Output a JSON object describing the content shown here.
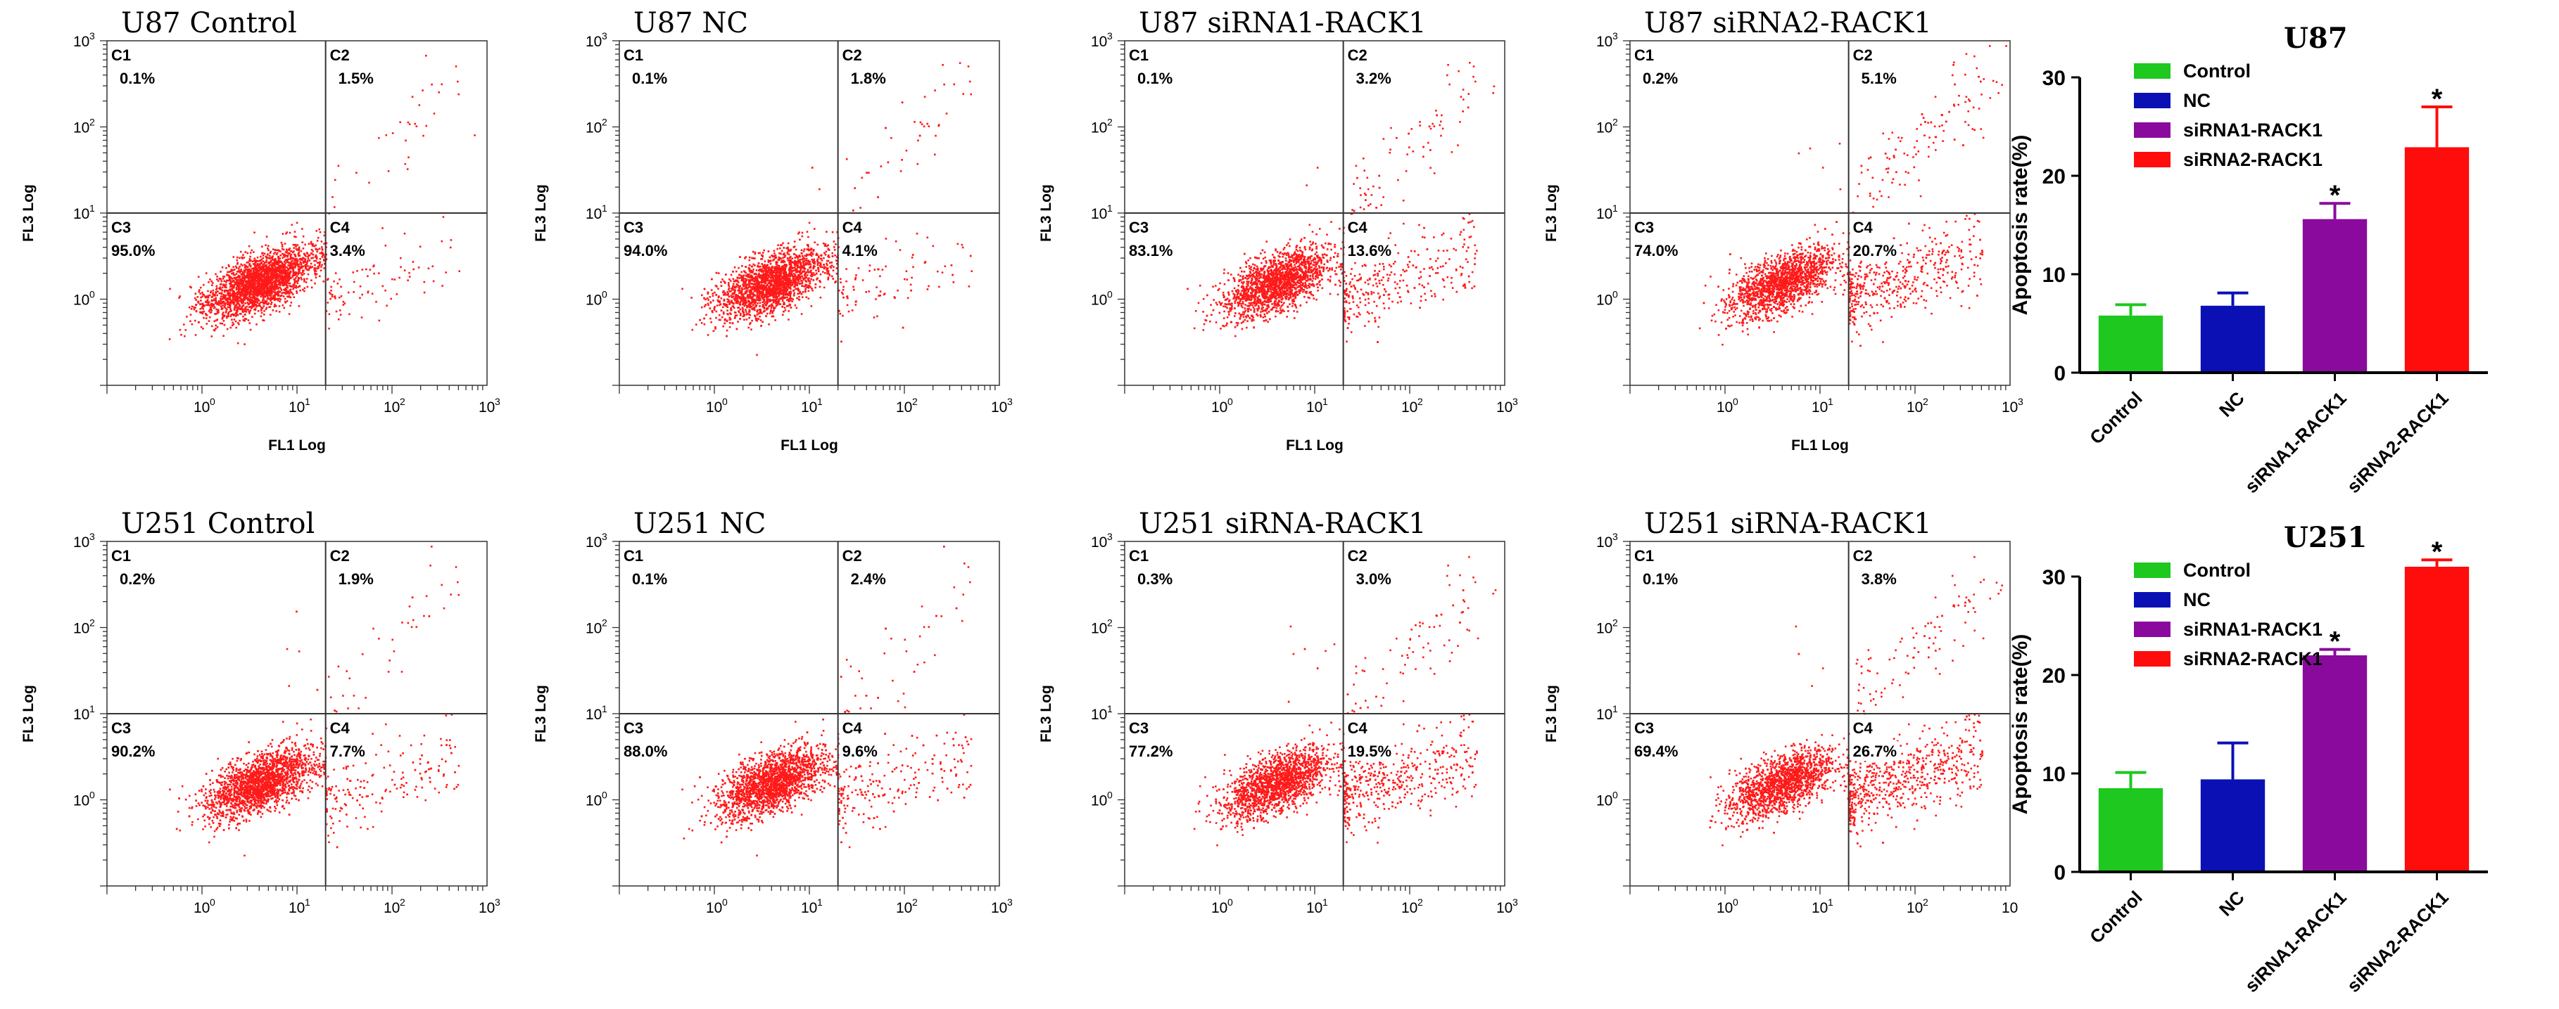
{
  "chart_data": [
    {
      "type": "scatter",
      "id": "u87-control",
      "title": "U87 Control",
      "xlabel": "FL1 Log",
      "ylabel": "FL3 Log",
      "xlim": [
        0.1,
        1000
      ],
      "ylim": [
        0.1,
        1000
      ],
      "x_ticks": [
        "10",
        "10",
        "10",
        "10"
      ],
      "x_tick_exps": [
        "0",
        "1",
        "2",
        "3"
      ],
      "y_ticks": [
        "10",
        "10",
        "10",
        "10"
      ],
      "y_tick_exps": [
        "0",
        "1",
        "2",
        "3"
      ],
      "gate": [
        20,
        10
      ],
      "quadrants": [
        {
          "name": "C1",
          "value": "0.1%"
        },
        {
          "name": "C2",
          "value": "1.5%"
        },
        {
          "name": "C3",
          "value": "95.0%"
        },
        {
          "name": "C4",
          "value": "3.4%"
        }
      ]
    },
    {
      "type": "scatter",
      "id": "u87-nc",
      "title": "U87 NC",
      "xlabel": "FL1 Log",
      "ylabel": "FL3 Log",
      "xlim": [
        0.1,
        1000
      ],
      "ylim": [
        0.1,
        1000
      ],
      "x_ticks": [
        "10",
        "10",
        "10",
        "10"
      ],
      "x_tick_exps": [
        "0",
        "1",
        "2",
        "3"
      ],
      "y_ticks": [
        "10",
        "10",
        "10",
        "10"
      ],
      "y_tick_exps": [
        "0",
        "1",
        "2",
        "3"
      ],
      "gate": [
        20,
        10
      ],
      "quadrants": [
        {
          "name": "C1",
          "value": "0.1%"
        },
        {
          "name": "C2",
          "value": "1.8%"
        },
        {
          "name": "C3",
          "value": "94.0%"
        },
        {
          "name": "C4",
          "value": "4.1%"
        }
      ]
    },
    {
      "type": "scatter",
      "id": "u87-sirna1",
      "title": "U87 siRNA1-RACK1",
      "xlabel": "FL1 Log",
      "ylabel": "FL3 Log",
      "xlim": [
        0.1,
        1000
      ],
      "ylim": [
        0.1,
        1000
      ],
      "x_ticks": [
        "10",
        "10",
        "10",
        "10"
      ],
      "x_tick_exps": [
        "0",
        "1",
        "2",
        "3"
      ],
      "y_ticks": [
        "10",
        "10",
        "10",
        "10"
      ],
      "y_tick_exps": [
        "0",
        "1",
        "2",
        "3"
      ],
      "gate": [
        20,
        10
      ],
      "quadrants": [
        {
          "name": "C1",
          "value": "0.1%"
        },
        {
          "name": "C2",
          "value": "3.2%"
        },
        {
          "name": "C3",
          "value": "83.1%"
        },
        {
          "name": "C4",
          "value": "13.6%"
        }
      ]
    },
    {
      "type": "scatter",
      "id": "u87-sirna2",
      "title": "U87 siRNA2-RACK1",
      "xlabel": "FL1 Log",
      "ylabel": "FL3 Log",
      "xlim": [
        0.1,
        1000
      ],
      "ylim": [
        0.1,
        1000
      ],
      "x_ticks": [
        "10",
        "10",
        "10",
        "10"
      ],
      "x_tick_exps": [
        "0",
        "1",
        "2",
        "3"
      ],
      "y_ticks": [
        "10",
        "10",
        "10",
        "10"
      ],
      "y_tick_exps": [
        "0",
        "1",
        "2",
        "3"
      ],
      "gate": [
        20,
        10
      ],
      "quadrants": [
        {
          "name": "C1",
          "value": "0.2%"
        },
        {
          "name": "C2",
          "value": "5.1%"
        },
        {
          "name": "C3",
          "value": "74.0%"
        },
        {
          "name": "C4",
          "value": "20.7%"
        }
      ]
    },
    {
      "type": "scatter",
      "id": "u251-control",
      "title": "U251 Control",
      "xlabel": "",
      "ylabel": "FL3 Log",
      "xlim": [
        0.1,
        1000
      ],
      "ylim": [
        0.1,
        1000
      ],
      "x_ticks": [
        "10",
        "10",
        "10",
        "10"
      ],
      "x_tick_exps": [
        "0",
        "1",
        "2",
        "3"
      ],
      "y_ticks": [
        "10",
        "10",
        "10",
        "10"
      ],
      "y_tick_exps": [
        "0",
        "1",
        "2",
        "3"
      ],
      "gate": [
        20,
        10
      ],
      "quadrants": [
        {
          "name": "C1",
          "value": "0.2%"
        },
        {
          "name": "C2",
          "value": "1.9%"
        },
        {
          "name": "C3",
          "value": "90.2%"
        },
        {
          "name": "C4",
          "value": "7.7%"
        }
      ]
    },
    {
      "type": "scatter",
      "id": "u251-nc",
      "title": "U251 NC",
      "xlabel": "",
      "ylabel": "FL3 Log",
      "xlim": [
        0.1,
        1000
      ],
      "ylim": [
        0.1,
        1000
      ],
      "x_ticks": [
        "10",
        "10",
        "10",
        "10"
      ],
      "x_tick_exps": [
        "0",
        "1",
        "2",
        "3"
      ],
      "y_ticks": [
        "10",
        "10",
        "10",
        "10"
      ],
      "y_tick_exps": [
        "0",
        "1",
        "2",
        "3"
      ],
      "gate": [
        20,
        10
      ],
      "quadrants": [
        {
          "name": "C1",
          "value": "0.1%"
        },
        {
          "name": "C2",
          "value": "2.4%"
        },
        {
          "name": "C3",
          "value": "88.0%"
        },
        {
          "name": "C4",
          "value": "9.6%"
        }
      ]
    },
    {
      "type": "scatter",
      "id": "u251-sirna1",
      "title": "U251 siRNA-RACK1",
      "xlabel": "",
      "ylabel": "FL3 Log",
      "xlim": [
        0.1,
        1000
      ],
      "ylim": [
        0.1,
        1000
      ],
      "x_ticks": [
        "10",
        "10",
        "10",
        "10"
      ],
      "x_tick_exps": [
        "0",
        "1",
        "2",
        "3"
      ],
      "y_ticks": [
        "10",
        "10",
        "10",
        "10"
      ],
      "y_tick_exps": [
        "0",
        "1",
        "2",
        "3"
      ],
      "gate": [
        20,
        10
      ],
      "quadrants": [
        {
          "name": "C1",
          "value": "0.3%"
        },
        {
          "name": "C2",
          "value": "3.0%"
        },
        {
          "name": "C3",
          "value": "77.2%"
        },
        {
          "name": "C4",
          "value": "19.5%"
        }
      ]
    },
    {
      "type": "scatter",
      "id": "u251-sirna2",
      "title": "U251 siRNA-RACK1",
      "xlabel": "",
      "ylabel": "FL3 Log",
      "xlim": [
        0.1,
        1000
      ],
      "ylim": [
        0.1,
        1000
      ],
      "x_ticks": [
        "10",
        "10",
        "10",
        "10"
      ],
      "x_tick_exps": [
        "0",
        "1",
        "2",
        ""
      ],
      "y_ticks": [
        "10",
        "10",
        "10",
        "10"
      ],
      "y_tick_exps": [
        "0",
        "1",
        "2",
        "3"
      ],
      "gate": [
        20,
        10
      ],
      "quadrants": [
        {
          "name": "C1",
          "value": "0.1%"
        },
        {
          "name": "C2",
          "value": "3.8%"
        },
        {
          "name": "C3",
          "value": "69.4%"
        },
        {
          "name": "C4",
          "value": "26.7%"
        }
      ]
    },
    {
      "type": "bar",
      "id": "u87-bar",
      "title": "U87",
      "ylabel": "Apoptosis rate(%)",
      "ylim": [
        0,
        30
      ],
      "y_ticks": [
        "0",
        "10",
        "20",
        "30"
      ],
      "categories": [
        "Control",
        "NC",
        "siRNA1-RACK1",
        "siRNA2-RACK1"
      ],
      "values": [
        5.8,
        6.8,
        15.6,
        22.9
      ],
      "errors": [
        1.1,
        1.3,
        1.6,
        4.1
      ],
      "colors": [
        "#1ec81e",
        "#0b10b5",
        "#8a0a9e",
        "#ff0c0c"
      ],
      "significant": [
        "",
        "",
        "*",
        "*"
      ],
      "legend": [
        "Control",
        "NC",
        "siRNA1-RACK1",
        "siRNA2-RACK1"
      ]
    },
    {
      "type": "bar",
      "id": "u251-bar",
      "title": "U251",
      "ylabel": "Apoptosis rate(%)",
      "ylim": [
        0,
        30
      ],
      "y_ticks": [
        "0",
        "10",
        "20",
        "30"
      ],
      "categories": [
        "Control",
        "NC",
        "siRNA1-RACK1",
        "siRNA2-RACK1"
      ],
      "values": [
        8.5,
        9.4,
        22,
        31
      ],
      "errors": [
        1.6,
        3.7,
        0.6,
        0.7
      ],
      "colors": [
        "#1ec81e",
        "#0b10b5",
        "#8a0a9e",
        "#ff0c0c"
      ],
      "significant": [
        "",
        "",
        "*",
        "*"
      ],
      "legend": [
        "Control",
        "NC",
        "siRNA1-RACK1",
        "siRNA2-RACK1"
      ]
    }
  ]
}
